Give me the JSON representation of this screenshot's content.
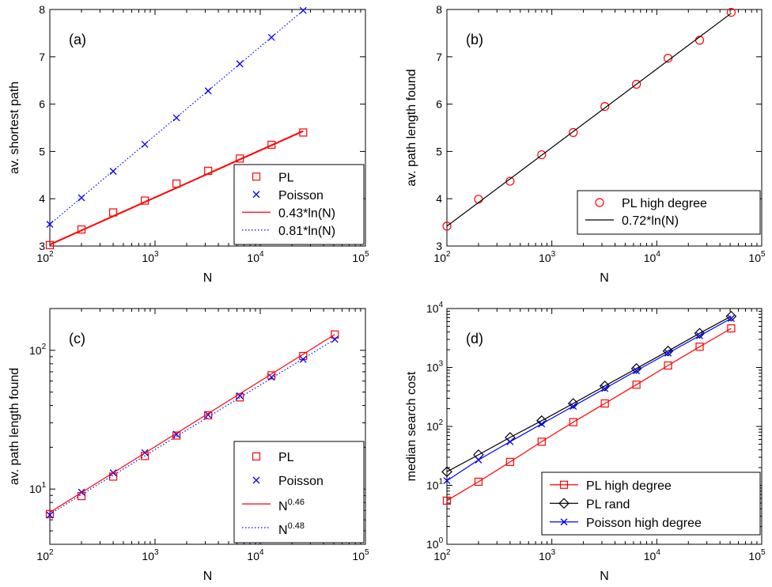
{
  "colors": {
    "red": "#ff0000",
    "blue": "#0000ff",
    "black": "#000000"
  },
  "chart_data": [
    {
      "panel": "(a)",
      "type": "line",
      "xscale": "log",
      "yscale": "linear",
      "xlim": [
        100,
        100000
      ],
      "ylim": [
        3,
        8
      ],
      "xlabel": "N",
      "ylabel": "av. shortest path",
      "xticks": [
        {
          "base": "10",
          "exp": "2"
        },
        {
          "base": "10",
          "exp": "3"
        },
        {
          "base": "10",
          "exp": "4"
        },
        {
          "base": "10",
          "exp": "5"
        }
      ],
      "yticks": [
        "3",
        "4",
        "5",
        "6",
        "7",
        "8"
      ],
      "legend_position": "bottom-right",
      "series": [
        {
          "name": "PL",
          "marker": "square",
          "color": "#ff0000",
          "line": "none",
          "x": [
            100,
            200,
            400,
            800,
            1600,
            3200,
            6400,
            12800,
            25600
          ],
          "y": [
            3.02,
            3.35,
            3.71,
            3.96,
            4.32,
            4.59,
            4.85,
            5.14,
            5.4
          ]
        },
        {
          "name": "Poisson",
          "marker": "x",
          "color": "#0000ff",
          "line": "none",
          "x": [
            100,
            200,
            400,
            800,
            1600,
            3200,
            6400,
            12800,
            25600
          ],
          "y": [
            3.46,
            4.02,
            4.58,
            5.15,
            5.71,
            6.28,
            6.85,
            7.41,
            7.98
          ]
        },
        {
          "name": "0.43*ln(N)",
          "marker": "none",
          "color": "#ff0000",
          "line": "solid",
          "x": [
            100,
            25600
          ],
          "y": [
            3.03,
            5.43
          ]
        },
        {
          "name": "0.81*ln(N)",
          "marker": "none",
          "color": "#0000ff",
          "line": "dotted",
          "x": [
            100,
            25600
          ],
          "y": [
            3.46,
            7.98
          ]
        }
      ]
    },
    {
      "panel": "(b)",
      "type": "line",
      "xscale": "log",
      "yscale": "linear",
      "xlim": [
        100,
        100000
      ],
      "ylim": [
        3,
        8
      ],
      "xlabel": "N",
      "ylabel": "av. path length found",
      "xticks": [
        {
          "base": "10",
          "exp": "2"
        },
        {
          "base": "10",
          "exp": "3"
        },
        {
          "base": "10",
          "exp": "4"
        },
        {
          "base": "10",
          "exp": "5"
        }
      ],
      "yticks": [
        "3",
        "4",
        "5",
        "6",
        "7",
        "8"
      ],
      "legend_position": "bottom-right",
      "series": [
        {
          "name": "PL high degree",
          "marker": "circle",
          "color": "#ff0000",
          "line": "none",
          "x": [
            100,
            200,
            400,
            800,
            1600,
            3200,
            6400,
            12800,
            25600,
            51200
          ],
          "y": [
            3.42,
            3.99,
            4.37,
            4.93,
            5.4,
            5.95,
            6.42,
            6.97,
            7.35,
            7.94
          ]
        },
        {
          "name": "0.72*ln(N)",
          "marker": "none",
          "color": "#000000",
          "line": "solid",
          "x": [
            100,
            51200
          ],
          "y": [
            3.42,
            7.92
          ]
        }
      ]
    },
    {
      "panel": "(c)",
      "type": "line",
      "xscale": "log",
      "yscale": "log",
      "xlim": [
        100,
        100000
      ],
      "ylim": [
        4,
        200
      ],
      "xlabel": "N",
      "ylabel": "av. path length found",
      "xticks": [
        {
          "base": "10",
          "exp": "2"
        },
        {
          "base": "10",
          "exp": "3"
        },
        {
          "base": "10",
          "exp": "4"
        },
        {
          "base": "10",
          "exp": "5"
        }
      ],
      "yticks": [
        {
          "base": "10",
          "exp": "1",
          "value": 10
        },
        {
          "base": "10",
          "exp": "2",
          "value": 100
        }
      ],
      "legend_position": "bottom-right",
      "series": [
        {
          "name": "PL",
          "marker": "square",
          "color": "#ff0000",
          "line": "none",
          "x": [
            100,
            200,
            400,
            800,
            1600,
            3200,
            6400,
            12800,
            25600,
            51200
          ],
          "y": [
            6.6,
            8.9,
            12.3,
            17.3,
            24.3,
            34.0,
            45.8,
            66.0,
            91.0,
            130
          ]
        },
        {
          "name": "Poisson",
          "marker": "x",
          "color": "#0000ff",
          "line": "none",
          "x": [
            100,
            200,
            400,
            800,
            1600,
            3200,
            6400,
            12800,
            25600,
            51200
          ],
          "y": [
            6.5,
            9.5,
            13.1,
            18.3,
            24.8,
            34.3,
            47.0,
            64.0,
            86.0,
            120
          ]
        },
        {
          "name_base": "N",
          "name_exp": "0.46",
          "marker": "none",
          "color": "#ff0000",
          "line": "solid",
          "x": [
            100,
            51200
          ],
          "y": [
            6.8,
            130
          ]
        },
        {
          "name_base": "N",
          "name_exp": "0.48",
          "marker": "none",
          "color": "#0000ff",
          "line": "dotted",
          "x": [
            100,
            51200
          ],
          "y": [
            6.6,
            120
          ]
        }
      ]
    },
    {
      "panel": "(d)",
      "type": "line",
      "xscale": "log",
      "yscale": "log",
      "xlim": [
        100,
        100000
      ],
      "ylim": [
        1,
        10000
      ],
      "xlabel": "N",
      "ylabel": "median search cost",
      "xticks": [
        {
          "base": "10",
          "exp": "2"
        },
        {
          "base": "10",
          "exp": "3"
        },
        {
          "base": "10",
          "exp": "4"
        },
        {
          "base": "10",
          "exp": "5"
        }
      ],
      "yticks": [
        {
          "base": "10",
          "exp": "0",
          "value": 1
        },
        {
          "base": "10",
          "exp": "1",
          "value": 10
        },
        {
          "base": "10",
          "exp": "2",
          "value": 100
        },
        {
          "base": "10",
          "exp": "3",
          "value": 1000
        },
        {
          "base": "10",
          "exp": "4",
          "value": 10000
        }
      ],
      "legend_position": "bottom-right",
      "series": [
        {
          "name": "PL high degree",
          "marker": "square",
          "color": "#ff0000",
          "line": "solid",
          "x": [
            100,
            200,
            400,
            800,
            1600,
            3200,
            6400,
            12800,
            25600,
            51200
          ],
          "y": [
            5.5,
            11.5,
            25,
            55,
            118,
            245,
            510,
            1080,
            2250,
            4600
          ]
        },
        {
          "name": "PL rand",
          "marker": "diamond",
          "color": "#000000",
          "line": "solid",
          "x": [
            100,
            200,
            400,
            800,
            1600,
            3200,
            6400,
            12800,
            25600,
            51200
          ],
          "y": [
            17,
            33,
            65,
            125,
            245,
            485,
            960,
            1900,
            3800,
            7400
          ]
        },
        {
          "name": "Poisson high degree",
          "marker": "x",
          "color": "#0000ff",
          "line": "solid",
          "x": [
            100,
            200,
            400,
            800,
            1600,
            3200,
            6400,
            12800,
            25600,
            51200
          ],
          "y": [
            12,
            27,
            55,
            110,
            220,
            440,
            880,
            1750,
            3450,
            6800
          ]
        }
      ]
    }
  ]
}
